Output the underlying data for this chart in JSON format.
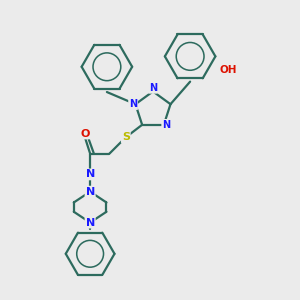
{
  "background_color": "#ebebeb",
  "bond_color": "#2d6b5e",
  "bond_width": 1.6,
  "n_color": "#1a1aff",
  "o_color": "#dd1100",
  "s_color": "#bbbb00",
  "figsize": [
    3.0,
    3.0
  ],
  "dpi": 100,
  "xlim": [
    0,
    10
  ],
  "ylim": [
    0,
    10
  ]
}
